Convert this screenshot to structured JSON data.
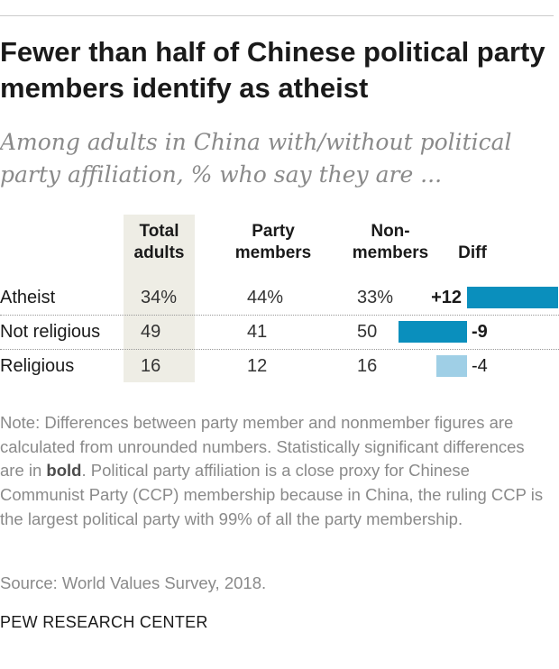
{
  "title": "Fewer than half of Chinese political party members identify as atheist",
  "subtitle": "Among adults in China with/without political party affiliation, % who say they are ...",
  "chart_data": {
    "type": "table",
    "columns": [
      {
        "key": "total",
        "label": "Total adults",
        "lines": [
          "Total",
          "adults"
        ]
      },
      {
        "key": "party",
        "label": "Party members",
        "lines": [
          "Party",
          "members"
        ]
      },
      {
        "key": "non",
        "label": "Non-members",
        "lines": [
          "Non-",
          "members"
        ]
      },
      {
        "key": "diff",
        "label": "Diff",
        "lines": [
          "Diff"
        ]
      }
    ],
    "rows": [
      {
        "label": "Atheist",
        "total": "34%",
        "party": "44%",
        "non": "33%",
        "diff": 12,
        "diff_label": "+12",
        "significant": true
      },
      {
        "label": "Not religious",
        "total": "49",
        "party": "41",
        "non": "50",
        "diff": -9,
        "diff_label": "-9",
        "significant": true
      },
      {
        "label": "Religious",
        "total": "16",
        "party": "12",
        "non": "16",
        "diff": -4,
        "diff_label": "-4",
        "significant": false
      }
    ],
    "colors": {
      "significant": "#0a8fbd",
      "not_significant": "#9fcfe6",
      "highlight_column": "#eeede5"
    }
  },
  "note": {
    "before_bold": "Note: Differences between party member and nonmember figures are calculated from unrounded numbers. Statistically significant differences are in ",
    "bold_word": "bold",
    "after_bold": ". Political party affiliation is a close proxy for Chinese Communist Party (CCP) membership because in China, the ruling CCP is the largest political party with 99% of all the party membership."
  },
  "source": "Source: World Values Survey, 2018.",
  "brand": "PEW RESEARCH CENTER"
}
